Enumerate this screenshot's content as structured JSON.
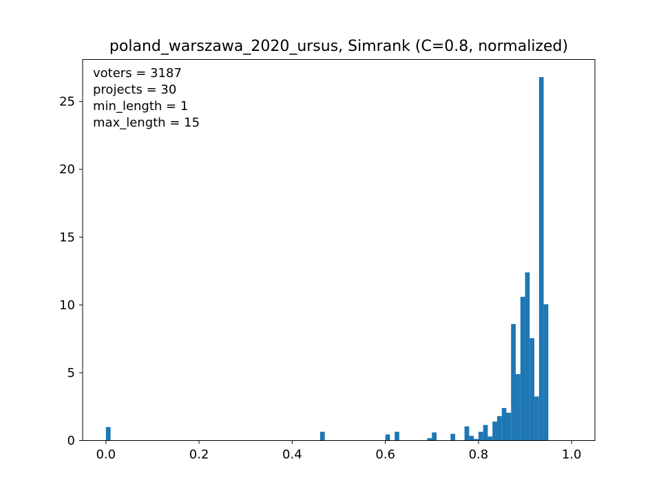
{
  "chart_data": {
    "type": "bar",
    "title": "poland_warszawa_2020_ursus, Simrank (C=0.8, normalized)",
    "xlabel": "",
    "ylabel": "",
    "xlim": [
      -0.05,
      1.05
    ],
    "ylim": [
      0,
      28.1
    ],
    "xticks": [
      0.0,
      0.2,
      0.4,
      0.6,
      0.8,
      1.0
    ],
    "xtick_labels": [
      "0.0",
      "0.2",
      "0.4",
      "0.6",
      "0.8",
      "1.0"
    ],
    "yticks": [
      0,
      5,
      10,
      15,
      20,
      25
    ],
    "ytick_labels": [
      "0",
      "5",
      "10",
      "15",
      "20",
      "25"
    ],
    "annotation_lines": [
      "voters = 3187",
      "projects = 30",
      "min_length = 1",
      "max_length = 15"
    ],
    "bar_color": "#1f77b4",
    "bin_width": 0.01,
    "bins": [
      {
        "x": 0.0,
        "value": 1.0
      },
      {
        "x": 0.46,
        "value": 0.65
      },
      {
        "x": 0.6,
        "value": 0.45
      },
      {
        "x": 0.62,
        "value": 0.65
      },
      {
        "x": 0.69,
        "value": 0.18
      },
      {
        "x": 0.7,
        "value": 0.6
      },
      {
        "x": 0.74,
        "value": 0.5
      },
      {
        "x": 0.77,
        "value": 1.05
      },
      {
        "x": 0.78,
        "value": 0.35
      },
      {
        "x": 0.79,
        "value": 0.12
      },
      {
        "x": 0.8,
        "value": 0.65
      },
      {
        "x": 0.81,
        "value": 1.15
      },
      {
        "x": 0.82,
        "value": 0.3
      },
      {
        "x": 0.83,
        "value": 1.4
      },
      {
        "x": 0.84,
        "value": 1.8
      },
      {
        "x": 0.85,
        "value": 2.4
      },
      {
        "x": 0.86,
        "value": 2.05
      },
      {
        "x": 0.87,
        "value": 8.6
      },
      {
        "x": 0.88,
        "value": 4.9
      },
      {
        "x": 0.89,
        "value": 10.6
      },
      {
        "x": 0.9,
        "value": 12.4
      },
      {
        "x": 0.91,
        "value": 7.55
      },
      {
        "x": 0.92,
        "value": 3.25
      },
      {
        "x": 0.93,
        "value": 26.8
      },
      {
        "x": 0.94,
        "value": 10.05
      }
    ]
  }
}
